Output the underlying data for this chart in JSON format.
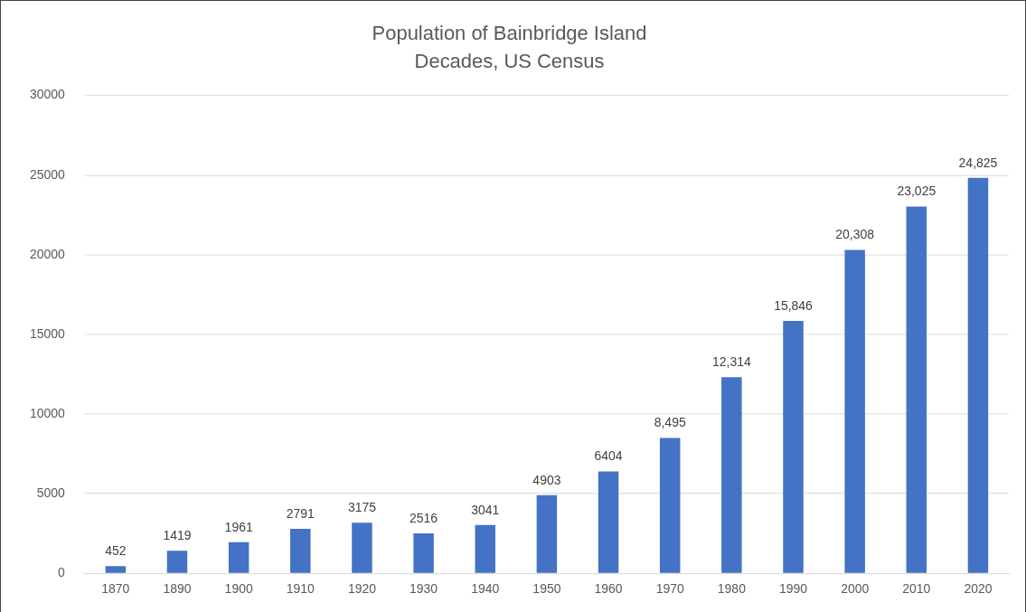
{
  "chart_data": {
    "type": "bar",
    "title": "Population of Bainbridge Island",
    "subtitle": "Decades, US Census",
    "categories": [
      "1870",
      "1890",
      "1900",
      "1910",
      "1920",
      "1930",
      "1940",
      "1950",
      "1960",
      "1970",
      "1980",
      "1990",
      "2000",
      "2010",
      "2020"
    ],
    "values": [
      452,
      1419,
      1961,
      2791,
      3175,
      2516,
      3041,
      4903,
      6404,
      8495,
      12314,
      15846,
      20308,
      23025,
      24825
    ],
    "value_labels": [
      "452",
      "1419",
      "1961",
      "2791",
      "3175",
      "2516",
      "3041",
      "4903",
      "6404",
      "8,495",
      "12,314",
      "15,846",
      "20,308",
      "23,025",
      "24,825"
    ],
    "color": "#4472c4",
    "ylim": [
      0,
      30000
    ],
    "yticks": [
      0,
      5000,
      10000,
      15000,
      20000,
      25000,
      30000
    ],
    "grid": "y",
    "legend": false
  }
}
